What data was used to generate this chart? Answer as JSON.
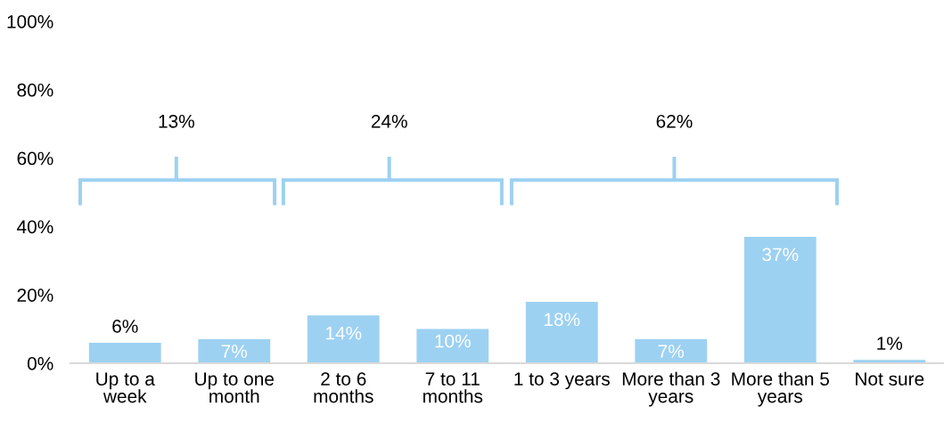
{
  "chart_data": {
    "type": "bar",
    "categories": [
      "Up to a week",
      "Up to one month",
      "2 to 6 months",
      "7 to 11 months",
      "1 to 3 years",
      "More than 3 years",
      "More than 5 years",
      "Not sure"
    ],
    "values": [
      6,
      7,
      14,
      10,
      18,
      7,
      37,
      1
    ],
    "value_labels": [
      "6%",
      "7%",
      "14%",
      "10%",
      "18%",
      "7%",
      "37%",
      "1%"
    ],
    "color": "#9dd1f2",
    "ylim": [
      0,
      100
    ],
    "yticks": [
      {
        "value": 0,
        "label": "0%"
      },
      {
        "value": 20,
        "label": "20%"
      },
      {
        "value": 40,
        "label": "40%"
      },
      {
        "value": 60,
        "label": "60%"
      },
      {
        "value": 80,
        "label": "80%"
      },
      {
        "value": 100,
        "label": "100%"
      }
    ],
    "annotations": [
      "13%",
      "24%",
      "62%"
    ]
  }
}
